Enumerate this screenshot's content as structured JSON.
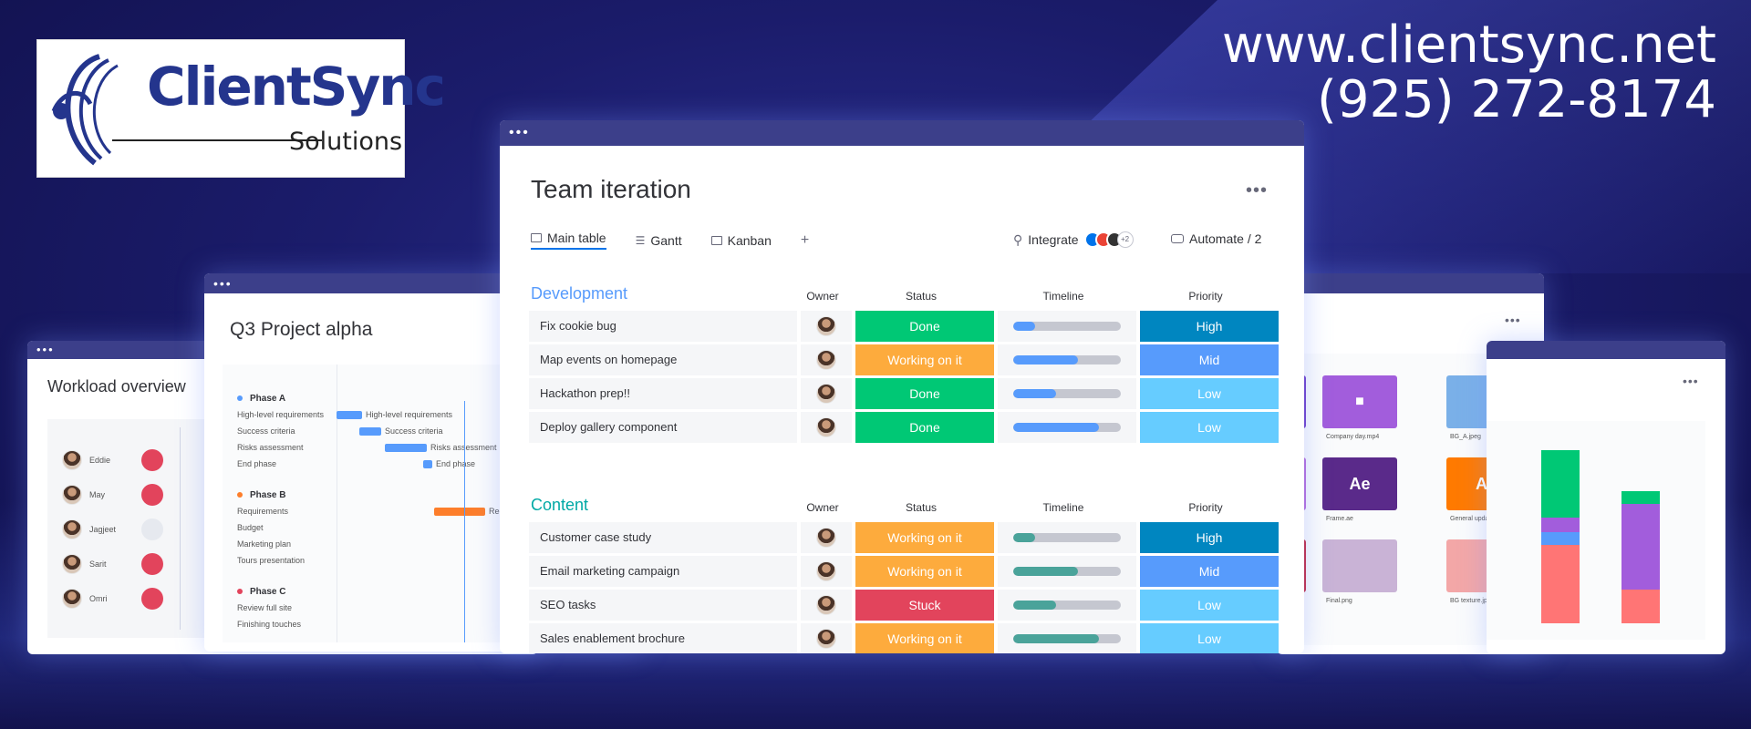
{
  "branding": {
    "logo_main": "ClientSync",
    "logo_sub": "Solutions",
    "website": "www.clientsync.net",
    "phone": "(925) 272-8174"
  },
  "workload": {
    "title": "Workload overview",
    "people": [
      {
        "name": "Eddie",
        "circle": "red"
      },
      {
        "name": "May",
        "circle": "red"
      },
      {
        "name": "Jagjeet",
        "circle": "grey"
      },
      {
        "name": "Sarit",
        "circle": "red"
      },
      {
        "name": "Omri",
        "circle": "red"
      }
    ]
  },
  "gantt": {
    "title": "Q3 Project alpha",
    "phases": [
      {
        "name": "Phase A",
        "color": "#579bfc",
        "items": [
          "High-level requirements",
          "Success criteria",
          "Risks assessment",
          "End phase"
        ]
      },
      {
        "name": "Phase B",
        "color": "#fd7e2b",
        "items": [
          "Requirements",
          "Budget",
          "Marketing plan",
          "Tours presentation"
        ]
      },
      {
        "name": "Phase C",
        "color": "#e2445c",
        "items": [
          "Review full site",
          "Finishing touches"
        ]
      }
    ],
    "bar_labels": [
      "High-level requirements",
      "Success criteria",
      "Risks assessment",
      "End phase",
      "Rec"
    ]
  },
  "main": {
    "title": "Team iteration",
    "more": "•••",
    "tabs": [
      {
        "label": "Main table",
        "icon": "table-icon",
        "active": true
      },
      {
        "label": "Gantt",
        "icon": "gantt-icon",
        "active": false
      },
      {
        "label": "Kanban",
        "icon": "kanban-icon",
        "active": false
      }
    ],
    "add_tab": "+",
    "integrate_label": "Integrate",
    "integrate_more": "+2",
    "automate_label": "Automate / 2",
    "columns": {
      "owner": "Owner",
      "status": "Status",
      "timeline": "Timeline",
      "priority": "Priority"
    },
    "groups": [
      {
        "title": "Development",
        "color": "#579bfc",
        "rows": [
          {
            "name": "Fix cookie bug",
            "status": "Done",
            "timeline": 0.2,
            "priority": "High"
          },
          {
            "name": "Map events on homepage",
            "status": "Working on it",
            "timeline": 0.6,
            "priority": "Mid"
          },
          {
            "name": "Hackathon prep!!",
            "status": "Done",
            "timeline": 0.4,
            "priority": "Low"
          },
          {
            "name": "Deploy gallery component",
            "status": "Done",
            "timeline": 0.8,
            "priority": "Low"
          }
        ]
      },
      {
        "title": "Content",
        "color": "#00a9a5",
        "rows": [
          {
            "name": "Customer case study",
            "status": "Working on it",
            "timeline": 0.2,
            "priority": "High"
          },
          {
            "name": "Email marketing campaign",
            "status": "Working on it",
            "timeline": 0.6,
            "priority": "Mid"
          },
          {
            "name": "SEO tasks",
            "status": "Stuck",
            "timeline": 0.4,
            "priority": "Low"
          },
          {
            "name": "Sales enablement brochure",
            "status": "Working on it",
            "timeline": 0.8,
            "priority": "Low"
          }
        ]
      }
    ]
  },
  "media": {
    "files": [
      {
        "caption": "Company day.mp4",
        "icon": "video-icon",
        "color": "#a25ddc"
      },
      {
        "caption": "BG_A.jpeg",
        "icon": "image-icon",
        "color": "#7ab0e8"
      },
      {
        "caption": "Frame.ae",
        "label": "Ae",
        "color": "#5a2a8a"
      },
      {
        "caption": "General update.ai",
        "label": "Ai",
        "color": "#ff7a00"
      },
      {
        "caption": "Final.png",
        "icon": "image-icon",
        "color": "#c9b3d6"
      },
      {
        "caption": "BG texture.jpeg",
        "icon": "image-icon",
        "color": "#f3a7a7"
      }
    ],
    "partial_captions": [
      ".png"
    ]
  },
  "colors": {
    "done": "#00c875",
    "working": "#fdab3d",
    "stuck": "#e2445c",
    "high": "#0086c0",
    "mid": "#579bfc",
    "low": "#66ccff",
    "dev_timeline": "#579bfc",
    "content_timeline": "#4aa39a"
  }
}
